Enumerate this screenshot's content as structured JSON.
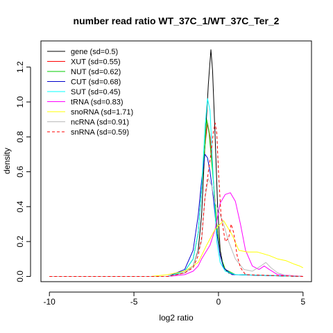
{
  "chart_data": {
    "type": "line",
    "title": "number read ratio WT_37C_1/WT_37C_Ter_2",
    "xlabel": "log2 ratio",
    "ylabel": "density",
    "xlim": [
      -10.5,
      5.5
    ],
    "ylim": [
      -0.03,
      1.35
    ],
    "xticks": [
      -10,
      -5,
      0,
      5
    ],
    "yticks": [
      0.0,
      0.2,
      0.4,
      0.6,
      0.8,
      1.0,
      1.2
    ],
    "xtick_labels": [
      "-10",
      "-5",
      "0",
      "5"
    ],
    "ytick_labels": [
      "0.0",
      "0.2",
      "0.4",
      "0.6",
      "0.8",
      "1.0",
      "1.2"
    ],
    "grid": false,
    "legend_position": "top-left",
    "series": [
      {
        "name": "gene (sd=0.5)",
        "color": "#000000",
        "dash": "solid",
        "points": [
          [
            -10,
            0
          ],
          [
            -3,
            0
          ],
          [
            -2,
            0.02
          ],
          [
            -1.5,
            0.06
          ],
          [
            -1.2,
            0.15
          ],
          [
            -1,
            0.35
          ],
          [
            -0.8,
            0.75
          ],
          [
            -0.6,
            1.1
          ],
          [
            -0.45,
            1.3
          ],
          [
            -0.35,
            1.18
          ],
          [
            -0.2,
            0.8
          ],
          [
            -0.05,
            0.4
          ],
          [
            0.1,
            0.15
          ],
          [
            0.3,
            0.05
          ],
          [
            0.6,
            0.02
          ],
          [
            1,
            0.01
          ],
          [
            5,
            0
          ]
        ]
      },
      {
        "name": "XUT (sd=0.55)",
        "color": "#ff0000",
        "dash": "solid",
        "points": [
          [
            -10,
            0
          ],
          [
            -3,
            0
          ],
          [
            -2,
            0.03
          ],
          [
            -1.5,
            0.1
          ],
          [
            -1.2,
            0.25
          ],
          [
            -1,
            0.5
          ],
          [
            -0.8,
            0.75
          ],
          [
            -0.65,
            0.88
          ],
          [
            -0.5,
            0.8
          ],
          [
            -0.3,
            0.55
          ],
          [
            -0.1,
            0.3
          ],
          [
            0.1,
            0.12
          ],
          [
            0.4,
            0.04
          ],
          [
            1,
            0.01
          ],
          [
            5,
            0
          ]
        ]
      },
      {
        "name": "NUT (sd=0.62)",
        "color": "#00cc00",
        "dash": "solid",
        "points": [
          [
            -10,
            0
          ],
          [
            -3,
            0
          ],
          [
            -2,
            0.03
          ],
          [
            -1.5,
            0.1
          ],
          [
            -1.2,
            0.25
          ],
          [
            -1,
            0.5
          ],
          [
            -0.8,
            0.75
          ],
          [
            -0.7,
            0.9
          ],
          [
            -0.55,
            0.82
          ],
          [
            -0.35,
            0.6
          ],
          [
            -0.1,
            0.3
          ],
          [
            0.1,
            0.12
          ],
          [
            0.4,
            0.04
          ],
          [
            1,
            0.01
          ],
          [
            5,
            0
          ]
        ]
      },
      {
        "name": "CUT (sd=0.68)",
        "color": "#0000cc",
        "dash": "solid",
        "points": [
          [
            -10,
            0
          ],
          [
            -3,
            0
          ],
          [
            -2,
            0.04
          ],
          [
            -1.5,
            0.15
          ],
          [
            -1.2,
            0.35
          ],
          [
            -1,
            0.55
          ],
          [
            -0.8,
            0.7
          ],
          [
            -0.65,
            0.68
          ],
          [
            -0.5,
            0.6
          ],
          [
            -0.3,
            0.45
          ],
          [
            -0.1,
            0.25
          ],
          [
            0.1,
            0.12
          ],
          [
            0.3,
            0.05
          ],
          [
            0.8,
            0.01
          ],
          [
            5,
            0
          ]
        ]
      },
      {
        "name": "SUT (sd=0.45)",
        "color": "#00ffff",
        "dash": "solid",
        "points": [
          [
            -10,
            0
          ],
          [
            -3,
            0
          ],
          [
            -2,
            0.03
          ],
          [
            -1.5,
            0.1
          ],
          [
            -1.2,
            0.25
          ],
          [
            -1,
            0.5
          ],
          [
            -0.8,
            0.85
          ],
          [
            -0.65,
            1.02
          ],
          [
            -0.5,
            0.95
          ],
          [
            -0.3,
            0.55
          ],
          [
            -0.1,
            0.2
          ],
          [
            0.1,
            0.08
          ],
          [
            0.4,
            0.03
          ],
          [
            1,
            0.01
          ],
          [
            5,
            0
          ]
        ]
      },
      {
        "name": "tRNA (sd=0.83)",
        "color": "#ff00ff",
        "dash": "solid",
        "points": [
          [
            -10,
            0
          ],
          [
            -3,
            0
          ],
          [
            -2,
            0.01
          ],
          [
            -1.5,
            0.03
          ],
          [
            -1.2,
            0.06
          ],
          [
            -1,
            0.1
          ],
          [
            -0.5,
            0.18
          ],
          [
            -0.2,
            0.27
          ],
          [
            0.1,
            0.42
          ],
          [
            0.4,
            0.47
          ],
          [
            0.7,
            0.48
          ],
          [
            1,
            0.43
          ],
          [
            1.3,
            0.3
          ],
          [
            1.6,
            0.15
          ],
          [
            2,
            0.06
          ],
          [
            2.4,
            0.04
          ],
          [
            2.7,
            0.06
          ],
          [
            3,
            0.04
          ],
          [
            3.5,
            0.01
          ],
          [
            5,
            0
          ]
        ]
      },
      {
        "name": "snoRNA (sd=1.71)",
        "color": "#ffff00",
        "dash": "solid",
        "points": [
          [
            -10,
            0
          ],
          [
            -4,
            0
          ],
          [
            -3,
            0.01
          ],
          [
            -2,
            0.03
          ],
          [
            -1.2,
            0.08
          ],
          [
            -0.7,
            0.18
          ],
          [
            -0.2,
            0.27
          ],
          [
            0.3,
            0.32
          ],
          [
            0.8,
            0.24
          ],
          [
            1.2,
            0.15
          ],
          [
            1.7,
            0.14
          ],
          [
            2.3,
            0.14
          ],
          [
            3,
            0.12
          ],
          [
            3.5,
            0.1
          ],
          [
            4,
            0.09
          ],
          [
            4.5,
            0.07
          ],
          [
            4.8,
            0.06
          ],
          [
            5,
            0.05
          ]
        ]
      },
      {
        "name": "ncRNA (sd=0.91)",
        "color": "#bbbbbb",
        "dash": "solid",
        "points": [
          [
            -10,
            0
          ],
          [
            -3,
            0
          ],
          [
            -2,
            0.02
          ],
          [
            -1.5,
            0.06
          ],
          [
            -1,
            0.2
          ],
          [
            -0.8,
            0.45
          ],
          [
            -0.6,
            0.56
          ],
          [
            -0.4,
            0.52
          ],
          [
            -0.2,
            0.42
          ],
          [
            0,
            0.38
          ],
          [
            0.3,
            0.3
          ],
          [
            0.6,
            0.2
          ],
          [
            1,
            0.1
          ],
          [
            1.5,
            0.04
          ],
          [
            2,
            0.03
          ],
          [
            2.5,
            0.06
          ],
          [
            2.8,
            0.08
          ],
          [
            3.1,
            0.05
          ],
          [
            3.5,
            0.02
          ],
          [
            4,
            0.005
          ],
          [
            5,
            0
          ]
        ]
      },
      {
        "name": "snRNA (sd=0.59)",
        "color": "#ff0000",
        "dash": "dashed",
        "points": [
          [
            -10,
            0
          ],
          [
            -3,
            0
          ],
          [
            -2,
            0.02
          ],
          [
            -1.5,
            0.05
          ],
          [
            -1.2,
            0.12
          ],
          [
            -1,
            0.22
          ],
          [
            -0.8,
            0.45
          ],
          [
            -0.6,
            0.6
          ],
          [
            -0.45,
            0.7
          ],
          [
            -0.3,
            0.83
          ],
          [
            -0.2,
            0.88
          ],
          [
            -0.1,
            0.82
          ],
          [
            0,
            0.6
          ],
          [
            0.15,
            0.35
          ],
          [
            0.4,
            0.2
          ],
          [
            0.6,
            0.22
          ],
          [
            0.75,
            0.3
          ],
          [
            0.9,
            0.25
          ],
          [
            1.1,
            0.12
          ],
          [
            1.3,
            0.05
          ],
          [
            1.6,
            0.01
          ],
          [
            5,
            0
          ]
        ]
      }
    ]
  }
}
